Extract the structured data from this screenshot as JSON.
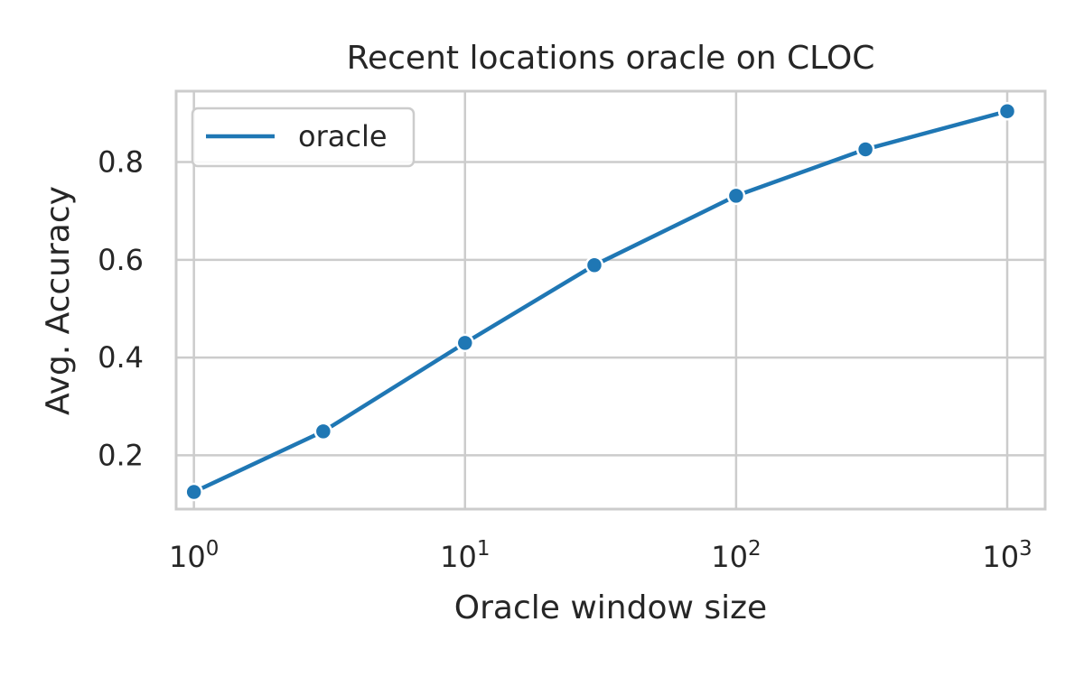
{
  "chart_data": {
    "type": "line",
    "title": "Recent locations oracle on CLOC",
    "xlabel": "Oracle window size",
    "ylabel": "Avg. Accuracy",
    "x_scale": "log",
    "xlim": [
      0.86,
      1380
    ],
    "ylim": [
      0.09,
      0.945
    ],
    "x_ticks": [
      1,
      10,
      100,
      1000
    ],
    "x_tick_labels": [
      {
        "base": "10",
        "exp": "0"
      },
      {
        "base": "10",
        "exp": "1"
      },
      {
        "base": "10",
        "exp": "2"
      },
      {
        "base": "10",
        "exp": "3"
      }
    ],
    "y_ticks": [
      0.2,
      0.4,
      0.6,
      0.8
    ],
    "y_tick_labels": [
      "0.2",
      "0.4",
      "0.6",
      "0.8"
    ],
    "grid": true,
    "legend_position": "top-left",
    "series": [
      {
        "name": "oracle",
        "color": "#1f77b4",
        "marker": "circle",
        "x": [
          1,
          3,
          10,
          30,
          100,
          300,
          1000
        ],
        "y": [
          0.125,
          0.249,
          0.43,
          0.589,
          0.731,
          0.826,
          0.904
        ]
      }
    ]
  }
}
